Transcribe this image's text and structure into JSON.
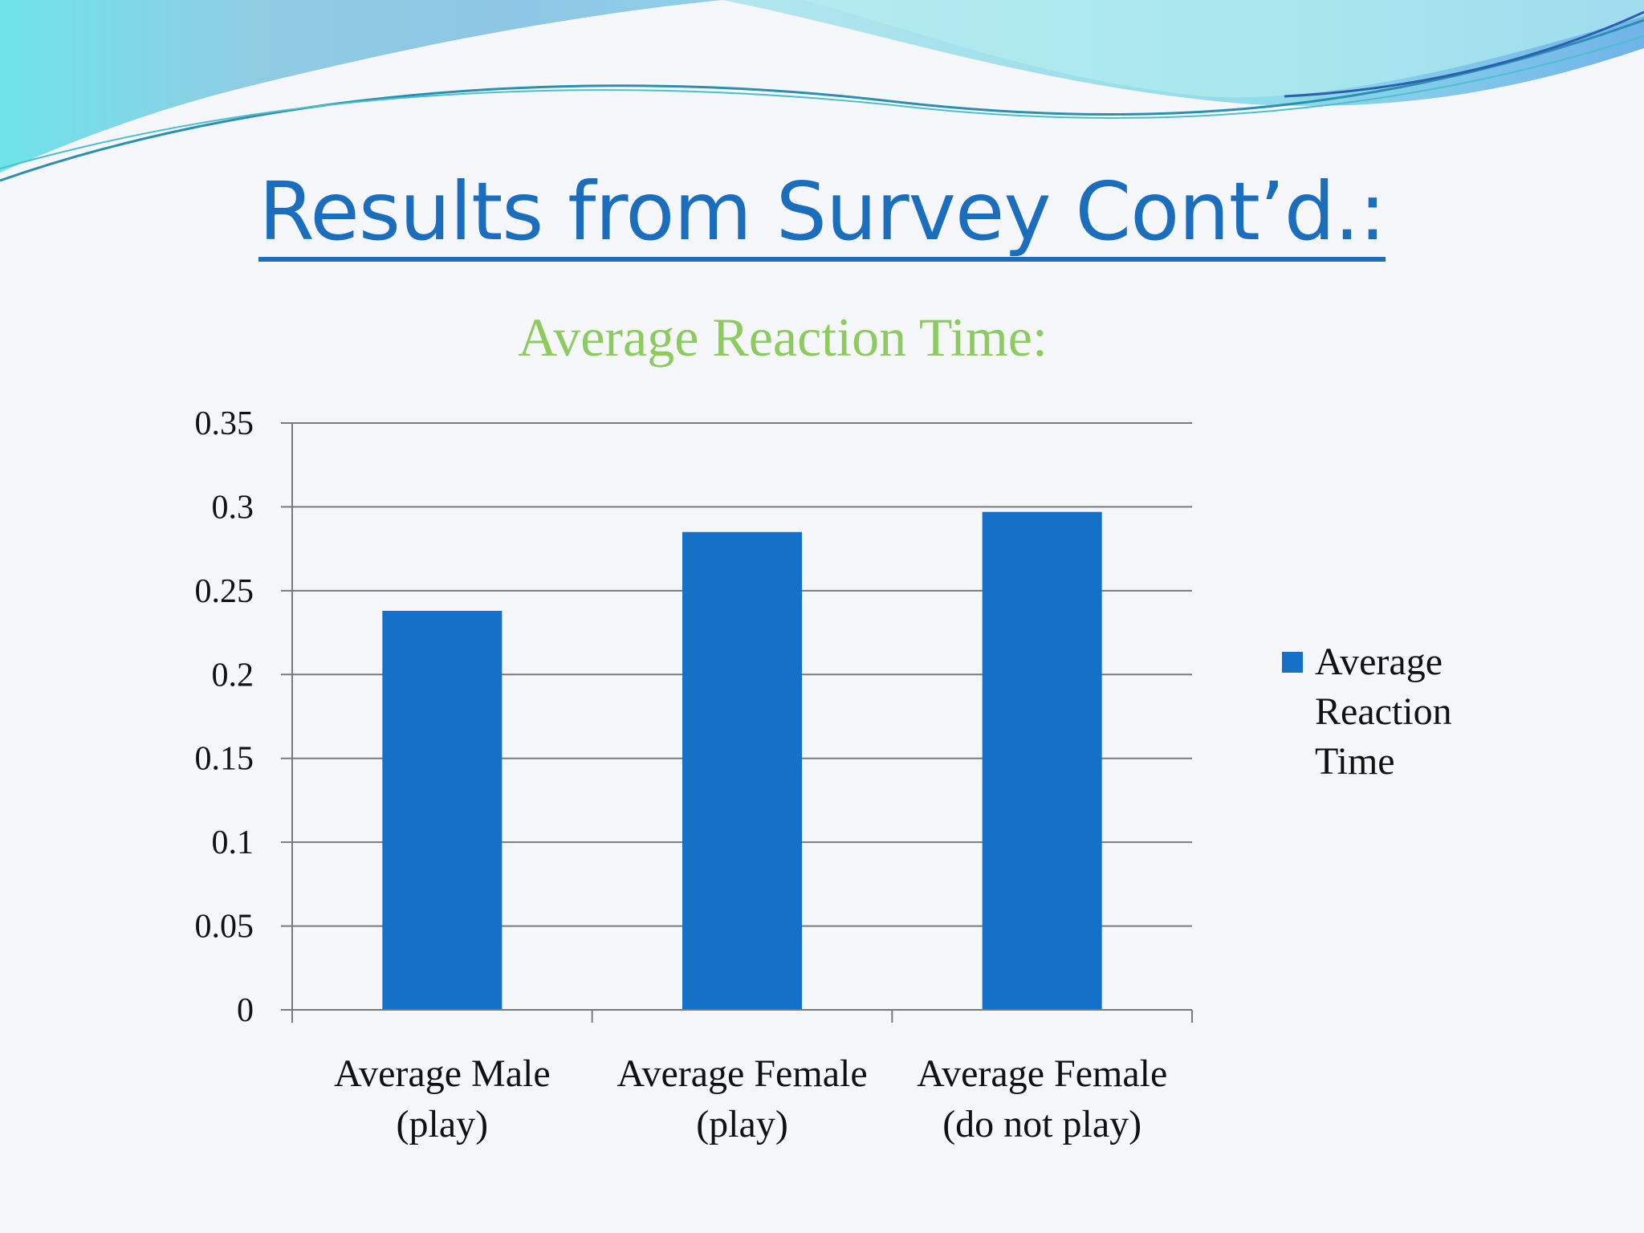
{
  "slide": {
    "title": "Results from Survey Cont’d.:",
    "colors": {
      "title": "#1a6ebd",
      "chart_title": "#8ccb5e",
      "bar": "#1570c8",
      "grid": "#7a7a7a",
      "text": "#111111",
      "background": "#f6f7fa"
    }
  },
  "chart_data": {
    "type": "bar",
    "title": "Average Reaction Time:",
    "categories": [
      [
        "Average Male",
        "(play)"
      ],
      [
        "Average Female",
        "(play)"
      ],
      [
        "Average Female",
        "(do not play)"
      ]
    ],
    "series": [
      {
        "name": "Average Reaction Time",
        "values": [
          0.238,
          0.285,
          0.297
        ]
      }
    ],
    "legend_lines": [
      "Average",
      "Reaction",
      "Time"
    ],
    "ylim": [
      0,
      0.35
    ],
    "yticks": [
      "0",
      "0.05",
      "0.1",
      "0.15",
      "0.2",
      "0.25",
      "0.3",
      "0.35"
    ],
    "ytick_values": [
      0,
      0.05,
      0.1,
      0.15,
      0.2,
      0.25,
      0.3,
      0.35
    ],
    "grid": true,
    "legend_position": "right"
  }
}
